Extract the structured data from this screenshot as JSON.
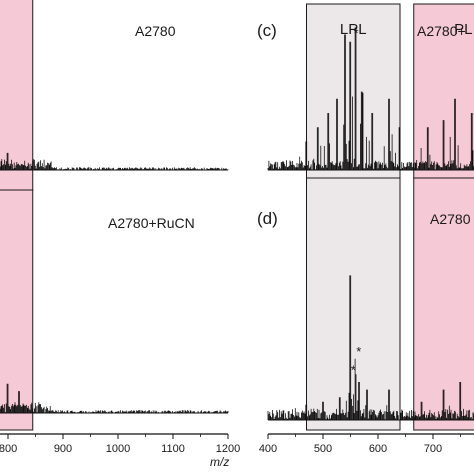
{
  "figure": {
    "x_axis_label": "m/z",
    "region_colors": {
      "LPL": "#ece8ea",
      "PL": "#f6c9d6"
    }
  },
  "chart_data": [
    {
      "type": "line",
      "panel_label": "",
      "sample": "A2780",
      "regions": [
        {
          "name": "LPL",
          "x_from": 410,
          "x_to": 640
        },
        {
          "name": "PL",
          "x_from": 665,
          "x_to": 845
        }
      ],
      "annotations": [
        {
          "text": "*",
          "x": 545,
          "y": 0.78
        }
      ],
      "xlim": [
        400,
        1200
      ],
      "ylim": [
        0,
        1.15
      ],
      "x_ticks": [],
      "x_tick_labels": []
    },
    {
      "type": "line",
      "panel_label": "",
      "sample": "A2780+RuCN",
      "regions": [
        {
          "name": "LPL",
          "x_from": 410,
          "x_to": 640
        },
        {
          "name": "PL",
          "x_from": 665,
          "x_to": 845
        }
      ],
      "annotations": [
        {
          "text": "*",
          "x": 550,
          "y": 0.42
        },
        {
          "text": "*",
          "x": 575,
          "y": 0.27
        }
      ],
      "xlim": [
        400,
        1200
      ],
      "ylim": [
        0,
        1.15
      ],
      "x_ticks": [
        400,
        500,
        600,
        700,
        800,
        900,
        1000,
        1100,
        1200
      ],
      "x_tick_labels": [
        "",
        "",
        "600",
        "700",
        "800",
        "900",
        "1000",
        "1100",
        "1200"
      ]
    },
    {
      "type": "line",
      "panel_label": "(c)",
      "sample": "A2780+",
      "regions": [
        {
          "name": "LPL",
          "x_from": 470,
          "x_to": 640
        },
        {
          "name": "PL",
          "x_from": 665,
          "x_to": 845
        }
      ],
      "annotations": [
        {
          "text": "*",
          "x": 560,
          "y": 0.93
        }
      ],
      "xlim": [
        400,
        1200
      ],
      "ylim": [
        0,
        1.15
      ],
      "x_ticks": [],
      "x_tick_labels": []
    },
    {
      "type": "line",
      "panel_label": "(d)",
      "sample": "A2780",
      "regions": [
        {
          "name": "",
          "x_from": 470,
          "x_to": 640
        },
        {
          "name": "PL",
          "x_from": 665,
          "x_to": 845
        }
      ],
      "annotations": [
        {
          "text": "*",
          "x": 565,
          "y": 0.42
        },
        {
          "text": "*",
          "x": 555,
          "y": 0.3
        }
      ],
      "xlim": [
        400,
        1200
      ],
      "ylim": [
        0,
        1.15
      ],
      "x_ticks": [
        400,
        500,
        600,
        700,
        800,
        900,
        1000,
        1100,
        1200
      ],
      "x_tick_labels": [
        "400",
        "500",
        "600",
        "700",
        "800",
        "900",
        "1000",
        "1100",
        "1200"
      ]
    }
  ]
}
